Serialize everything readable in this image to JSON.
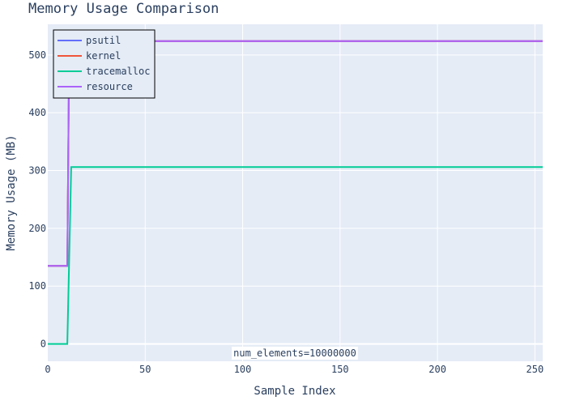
{
  "chart_data": {
    "type": "line",
    "title": "Memory Usage Comparison",
    "xlabel": "Sample Index",
    "ylabel": "Memory Usage (MB)",
    "xlim": [
      0,
      254
    ],
    "ylim": [
      -30,
      553
    ],
    "x_ticks": [
      0,
      50,
      100,
      150,
      200,
      250
    ],
    "y_ticks": [
      0,
      100,
      200,
      300,
      400,
      500
    ],
    "grid": true,
    "background": "#e5ecf6",
    "legend_position": "top-left",
    "annotation": "num_elements=10000000",
    "series": [
      {
        "name": "psutil",
        "color": "#636efa",
        "x": [
          0,
          10,
          11,
          254
        ],
        "y": [
          135,
          135,
          524,
          524
        ]
      },
      {
        "name": "kernel",
        "color": "#ef553b",
        "x": [
          0,
          10,
          11,
          254
        ],
        "y": [
          135,
          135,
          524,
          524
        ]
      },
      {
        "name": "tracemalloc",
        "color": "#00cc96",
        "x": [
          0,
          10,
          12,
          254
        ],
        "y": [
          0,
          0,
          306,
          306
        ]
      },
      {
        "name": "resource",
        "color": "#ab63fa",
        "x": [
          0,
          10,
          11,
          254
        ],
        "y": [
          135,
          135,
          524,
          524
        ]
      }
    ]
  }
}
